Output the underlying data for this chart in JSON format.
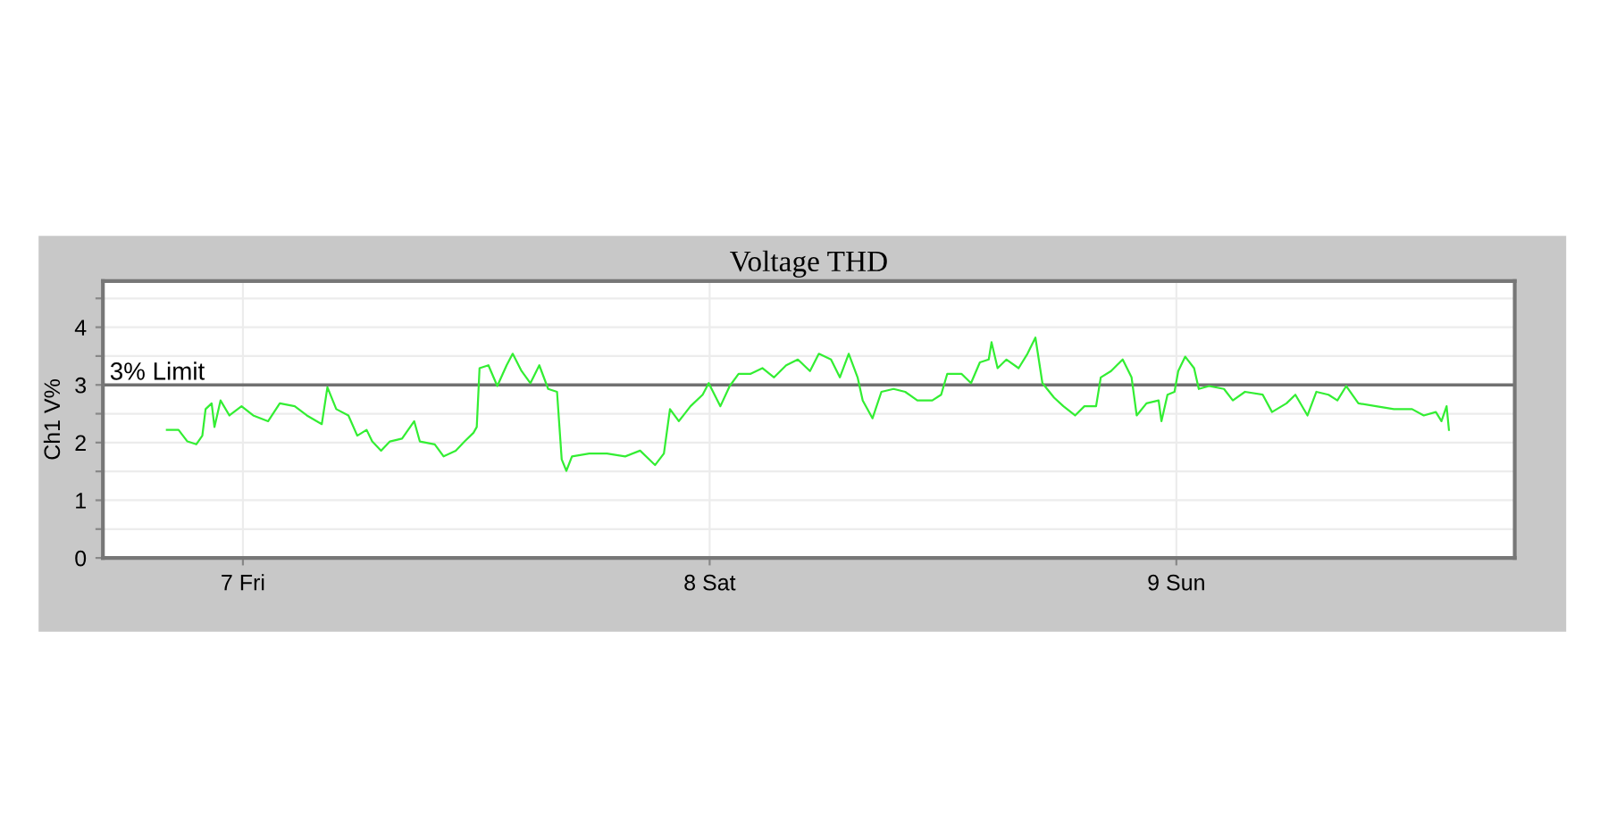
{
  "chart_data": {
    "type": "line",
    "title": "Voltage THD",
    "ylabel": "Ch1 V%",
    "xlim": [
      6.7,
      9.725
    ],
    "xticks": [
      {
        "value": 7,
        "label": "7 Fri"
      },
      {
        "value": 8,
        "label": "8 Sat"
      },
      {
        "value": 9,
        "label": "9 Sun"
      }
    ],
    "ylim": [
      0,
      4.8
    ],
    "yticks": [
      0,
      {
        "value": 0.5,
        "label": null
      },
      1,
      {
        "value": 1.5,
        "label": null
      },
      2,
      {
        "value": 2.5,
        "label": null
      },
      3,
      {
        "value": 3.5,
        "label": null
      },
      4,
      {
        "value": 4.5,
        "label": null
      }
    ],
    "grid": true,
    "legend": false,
    "marker": "none",
    "line_style": "solid",
    "ref_lines": [
      {
        "axis": "y",
        "value": 3,
        "label": "3% Limit",
        "color": "#707070"
      }
    ],
    "series": [
      {
        "color": "#33ee33",
        "x": [
          6.837,
          6.862,
          6.881,
          6.9,
          6.913,
          6.92,
          6.933,
          6.939,
          6.952,
          6.971,
          6.997,
          7.022,
          7.054,
          7.079,
          7.111,
          7.137,
          7.169,
          7.181,
          7.2,
          7.226,
          7.245,
          7.265,
          7.277,
          7.296,
          7.315,
          7.341,
          7.367,
          7.379,
          7.411,
          7.43,
          7.456,
          7.475,
          7.494,
          7.501,
          7.507,
          7.526,
          7.545,
          7.565,
          7.578,
          7.597,
          7.616,
          7.635,
          7.654,
          7.673,
          7.683,
          7.693,
          7.705,
          7.742,
          7.78,
          7.819,
          7.851,
          7.883,
          7.902,
          7.915,
          7.934,
          7.959,
          7.985,
          7.998,
          8.023,
          8.043,
          8.062,
          8.087,
          8.113,
          8.138,
          8.164,
          8.189,
          8.215,
          8.234,
          8.26,
          8.279,
          8.298,
          8.317,
          8.328,
          8.349,
          8.368,
          8.394,
          8.419,
          8.445,
          8.477,
          8.496,
          8.509,
          8.54,
          8.56,
          8.579,
          8.598,
          8.604,
          8.617,
          8.636,
          8.662,
          8.681,
          8.698,
          8.713,
          8.738,
          8.758,
          8.783,
          8.803,
          8.828,
          8.838,
          8.86,
          8.885,
          8.904,
          8.915,
          8.936,
          8.962,
          8.968,
          8.981,
          8.996,
          9.004,
          9.019,
          9.038,
          9.048,
          9.07,
          9.102,
          9.121,
          9.147,
          9.185,
          9.205,
          9.236,
          9.255,
          9.281,
          9.3,
          9.326,
          9.345,
          9.364,
          9.39,
          9.428,
          9.466,
          9.505,
          9.53,
          9.556,
          9.568,
          9.579,
          9.584
        ],
        "values": [
          2.22,
          2.22,
          2.02,
          1.97,
          2.12,
          2.58,
          2.68,
          2.27,
          2.73,
          2.47,
          2.63,
          2.47,
          2.37,
          2.68,
          2.63,
          2.47,
          2.32,
          2.96,
          2.58,
          2.47,
          2.12,
          2.22,
          2.02,
          1.86,
          2.02,
          2.07,
          2.37,
          2.02,
          1.97,
          1.76,
          1.86,
          2.02,
          2.17,
          2.27,
          3.29,
          3.34,
          2.98,
          3.34,
          3.54,
          3.24,
          3.03,
          3.34,
          2.93,
          2.88,
          1.71,
          1.51,
          1.76,
          1.81,
          1.81,
          1.76,
          1.86,
          1.61,
          1.81,
          2.58,
          2.37,
          2.63,
          2.83,
          3.03,
          2.63,
          2.98,
          3.19,
          3.19,
          3.29,
          3.13,
          3.34,
          3.44,
          3.24,
          3.54,
          3.44,
          3.13,
          3.54,
          3.13,
          2.73,
          2.42,
          2.88,
          2.93,
          2.88,
          2.73,
          2.73,
          2.83,
          3.19,
          3.19,
          3.03,
          3.39,
          3.44,
          3.74,
          3.29,
          3.44,
          3.29,
          3.54,
          3.82,
          3.03,
          2.78,
          2.63,
          2.47,
          2.63,
          2.63,
          3.13,
          3.24,
          3.44,
          3.13,
          2.47,
          2.68,
          2.73,
          2.37,
          2.83,
          2.88,
          3.24,
          3.49,
          3.29,
          2.93,
          2.98,
          2.93,
          2.73,
          2.88,
          2.83,
          2.53,
          2.68,
          2.83,
          2.47,
          2.88,
          2.83,
          2.73,
          2.98,
          2.68,
          2.63,
          2.58,
          2.58,
          2.47,
          2.53,
          2.37,
          2.63,
          2.22
        ]
      }
    ]
  }
}
